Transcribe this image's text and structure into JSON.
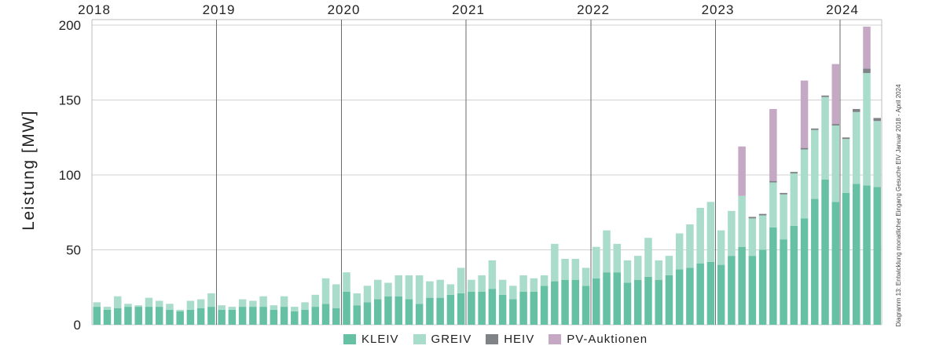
{
  "colors": {
    "KLEIV": "#66c0a3",
    "GREIV": "#a9dccb",
    "HEIV": "#7f8388",
    "PV-Auktionen": "#c4a8c4",
    "grid": "#d0d0d0",
    "yearline": "#6a6a6a"
  },
  "side_note": "Diagramm 13: Entwicklung monatlicher Eingang Gesuche EIV Januar 2018 - April 2024",
  "chart_data": {
    "type": "bar",
    "stacked": true,
    "title": "",
    "xlabel": "",
    "ylabel": "Leistung [MW]",
    "ylim": [
      0,
      200
    ],
    "yticks": [
      0,
      50,
      100,
      150,
      200
    ],
    "grid": true,
    "legend_position": "bottom",
    "year_labels": [
      "2018",
      "2019",
      "2020",
      "2021",
      "2022",
      "2023",
      "2024"
    ],
    "x_start": "2018-01",
    "x_end": "2024-04",
    "series": [
      {
        "name": "KLEIV",
        "values": [
          12,
          10,
          11,
          12,
          12,
          12,
          12,
          10,
          9,
          10,
          11,
          12,
          10,
          10,
          12,
          12,
          12,
          10,
          12,
          9,
          10,
          12,
          14,
          11,
          22,
          13,
          15,
          17,
          19,
          19,
          17,
          14,
          18,
          18,
          20,
          21,
          22,
          22,
          24,
          20,
          17,
          22,
          22,
          26,
          29,
          30,
          30,
          26,
          31,
          35,
          35,
          28,
          30,
          32,
          30,
          33,
          37,
          38,
          41,
          42,
          40,
          46,
          52,
          46,
          50,
          65,
          57,
          66,
          71,
          84,
          97,
          82,
          88,
          94,
          93,
          92
        ]
      },
      {
        "name": "GREIV",
        "values": [
          3,
          2,
          8,
          2,
          1,
          6,
          4,
          4,
          1,
          6,
          6,
          9,
          3,
          2,
          5,
          4,
          7,
          3,
          7,
          3,
          5,
          8,
          17,
          16,
          13,
          8,
          11,
          13,
          9,
          14,
          16,
          19,
          11,
          12,
          7,
          17,
          8,
          11,
          19,
          10,
          9,
          11,
          9,
          7,
          25,
          14,
          14,
          12,
          21,
          28,
          19,
          15,
          16,
          26,
          13,
          13,
          24,
          29,
          37,
          40,
          23,
          30,
          34,
          25,
          23,
          30,
          30,
          35,
          46,
          46,
          55,
          51,
          36,
          48,
          75,
          44
        ]
      },
      {
        "name": "HEIV",
        "values": [
          0,
          0,
          0,
          0,
          0,
          0,
          0,
          0,
          0,
          0,
          0,
          0,
          0,
          0,
          0,
          0,
          0,
          0,
          0,
          0,
          0,
          0,
          0,
          0,
          0,
          0,
          0,
          0,
          0,
          0,
          0,
          0,
          0,
          0,
          0,
          0,
          0,
          0,
          0,
          0,
          0,
          0,
          0,
          0,
          0,
          0,
          0,
          0,
          0,
          0,
          0,
          0,
          0,
          0,
          0,
          0,
          0,
          0,
          0,
          0,
          0,
          0,
          0,
          1,
          1,
          1,
          1,
          1,
          1,
          1,
          1,
          1,
          1,
          2,
          3,
          2
        ]
      },
      {
        "name": "PV-Auktionen",
        "values": [
          0,
          0,
          0,
          0,
          0,
          0,
          0,
          0,
          0,
          0,
          0,
          0,
          0,
          0,
          0,
          0,
          0,
          0,
          0,
          0,
          0,
          0,
          0,
          0,
          0,
          0,
          0,
          0,
          0,
          0,
          0,
          0,
          0,
          0,
          0,
          0,
          0,
          0,
          0,
          0,
          0,
          0,
          0,
          0,
          0,
          0,
          0,
          0,
          0,
          0,
          0,
          0,
          0,
          0,
          0,
          0,
          0,
          0,
          0,
          0,
          0,
          0,
          33,
          0,
          0,
          48,
          0,
          0,
          45,
          0,
          0,
          40,
          0,
          0,
          28,
          0
        ]
      }
    ]
  }
}
